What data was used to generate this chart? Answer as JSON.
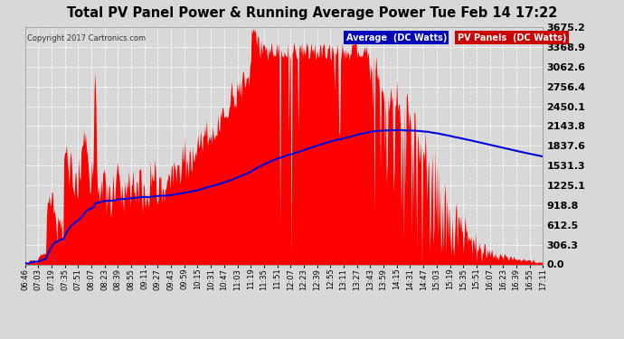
{
  "title": "Total PV Panel Power & Running Average Power Tue Feb 14 17:22",
  "copyright": "Copyright 2017 Cartronics.com",
  "legend_avg": "Average  (DC Watts)",
  "legend_pv": "PV Panels  (DC Watts)",
  "yticks": [
    0.0,
    306.3,
    612.5,
    918.8,
    1225.1,
    1531.3,
    1837.6,
    2143.8,
    2450.1,
    2756.4,
    3062.6,
    3368.9,
    3675.2
  ],
  "xtick_labels": [
    "06:46",
    "07:03",
    "07:19",
    "07:35",
    "07:51",
    "08:07",
    "08:23",
    "08:39",
    "08:55",
    "09:11",
    "09:27",
    "09:43",
    "09:59",
    "10:15",
    "10:31",
    "10:47",
    "11:03",
    "11:19",
    "11:35",
    "11:51",
    "12:07",
    "12:23",
    "12:39",
    "12:55",
    "13:11",
    "13:27",
    "13:43",
    "13:59",
    "14:15",
    "14:31",
    "14:47",
    "15:03",
    "15:19",
    "15:35",
    "15:51",
    "16:07",
    "16:23",
    "16:39",
    "16:55",
    "17:11"
  ],
  "bg_color": "#d8d8d8",
  "plot_bg_color": "#d8d8d8",
  "fill_color": "#ff0000",
  "line_color": "#0000dd",
  "title_color": "#000000",
  "ymax": 3675.2,
  "ymin": 0.0,
  "avg_legend_bg": "#0000cc",
  "pv_legend_bg": "#cc0000"
}
